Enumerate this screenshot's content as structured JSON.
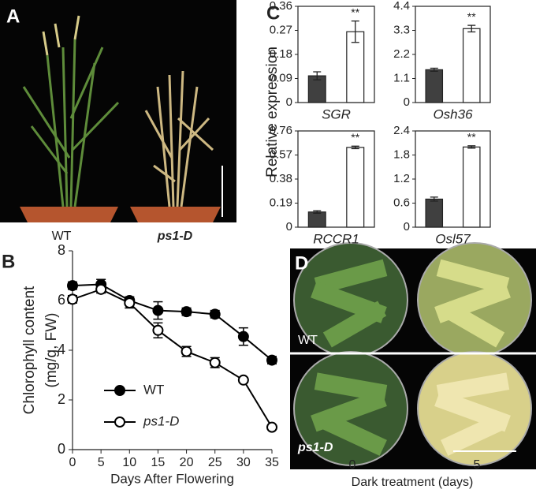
{
  "panels": {
    "A": {
      "letter": "A",
      "labels": [
        "WT",
        "ps1-D"
      ]
    },
    "B": {
      "letter": "B"
    },
    "C": {
      "letter": "C",
      "ylabel": "Relative expression"
    },
    "D": {
      "letter": "D",
      "row_labels": [
        "WT",
        "ps1-D"
      ],
      "col_labels": [
        "0",
        "5"
      ],
      "xlabel": "Dark treatment (days)"
    }
  },
  "chart_data": [
    {
      "type": "line",
      "ylabel": [
        "Chlorophyll content",
        "(mg/g, FW)"
      ],
      "xlabel": "Days After Flowering",
      "x": [
        0,
        5,
        10,
        15,
        20,
        25,
        30,
        35
      ],
      "xlim": [
        0,
        35
      ],
      "xticks": [
        0,
        5,
        10,
        15,
        20,
        25,
        30,
        35
      ],
      "ylim": [
        0,
        8
      ],
      "yticks": [
        0,
        2,
        4,
        6,
        8
      ],
      "legend": "lower left",
      "series": [
        {
          "name": "WT",
          "color": "#000000",
          "filled": true,
          "values": [
            6.6,
            6.65,
            6.0,
            5.6,
            5.55,
            5.45,
            4.55,
            3.6
          ],
          "errors": [
            0.15,
            0.2,
            0.15,
            0.35,
            0.15,
            0.15,
            0.35,
            0.15
          ]
        },
        {
          "name": "ps1-D",
          "color": "#000000",
          "filled": false,
          "values": [
            6.05,
            6.45,
            5.9,
            4.8,
            3.95,
            3.5,
            2.8,
            0.9
          ],
          "errors": [
            0.15,
            0.15,
            0.2,
            0.3,
            0.2,
            0.2,
            0.1,
            0.05
          ]
        }
      ]
    },
    {
      "type": "bar",
      "xlabel": "SGR",
      "ylim": [
        0,
        0.36
      ],
      "yticks": [
        0,
        0.09,
        0.18,
        0.27,
        0.36
      ],
      "values": [
        0.1,
        0.265
      ],
      "errors": [
        0.015,
        0.04
      ],
      "colors": [
        "#404040",
        "#ffffff"
      ],
      "annotation": "**"
    },
    {
      "type": "bar",
      "xlabel": "Osh36",
      "ylim": [
        0,
        4.4
      ],
      "yticks": [
        0,
        1.1,
        2.2,
        3.3,
        4.4
      ],
      "values": [
        1.5,
        3.38
      ],
      "errors": [
        0.07,
        0.15
      ],
      "colors": [
        "#404040",
        "#ffffff"
      ],
      "annotation": "**"
    },
    {
      "type": "bar",
      "xlabel": "RCCR1",
      "ylim": [
        0,
        0.76
      ],
      "yticks": [
        0,
        0.19,
        0.38,
        0.57,
        0.76
      ],
      "values": [
        0.12,
        0.63
      ],
      "errors": [
        0.01,
        0.01
      ],
      "colors": [
        "#404040",
        "#ffffff"
      ],
      "annotation": "**"
    },
    {
      "type": "bar",
      "xlabel": "Osl57",
      "ylim": [
        0,
        2.4
      ],
      "yticks": [
        0,
        0.6,
        1.2,
        1.8,
        2.4
      ],
      "values": [
        0.7,
        2.0
      ],
      "errors": [
        0.05,
        0.03
      ],
      "colors": [
        "#404040",
        "#ffffff"
      ],
      "annotation": "**"
    }
  ]
}
